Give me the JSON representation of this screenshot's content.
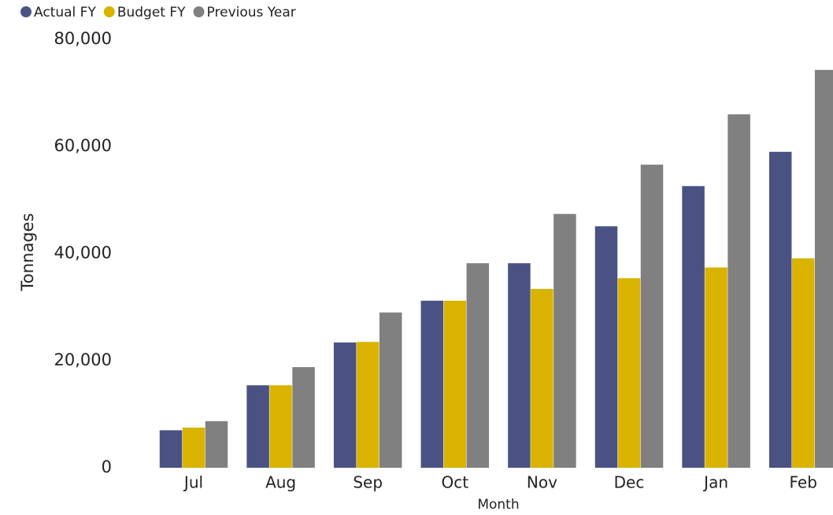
{
  "chart_data": {
    "type": "bar",
    "x_label": "Month",
    "y_label": "Tonnages",
    "categories": [
      "Jul",
      "Aug",
      "Sep",
      "Oct",
      "Nov",
      "Dec",
      "Jan",
      "Feb"
    ],
    "series": [
      {
        "name": "Actual FY",
        "color": "#4a5283",
        "values": [
          7000,
          15400,
          23400,
          31200,
          38200,
          45100,
          52600,
          59000
        ]
      },
      {
        "name": "Budget FY",
        "color": "#d9b300",
        "values": [
          7500,
          15400,
          23500,
          31200,
          33400,
          35400,
          37400,
          39100
        ]
      },
      {
        "name": "Previous Year",
        "color": "#808080",
        "values": [
          8700,
          18800,
          29000,
          38200,
          47400,
          56600,
          66000,
          74300
        ]
      }
    ],
    "ylim": [
      0,
      80000
    ],
    "yticks": [
      0,
      {
        "value": 20000,
        "label": "20,000"
      },
      {
        "value": 40000,
        "label": "40,000"
      },
      {
        "value": 60000,
        "label": "60,000"
      },
      {
        "value": 80000,
        "label": "80,000"
      }
    ],
    "legend": "top-left"
  }
}
